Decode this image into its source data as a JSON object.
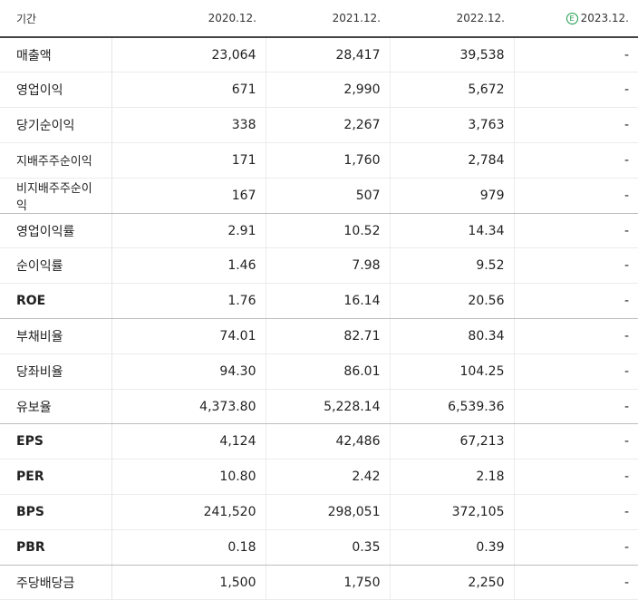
{
  "header": {
    "label": "기간",
    "periods": [
      "2020.12.",
      "2021.12.",
      "2022.12.",
      "2023.12."
    ],
    "estimate_marker": "E"
  },
  "rows": [
    {
      "label": "매출액",
      "values": [
        "23,064",
        "28,417",
        "39,538",
        "-"
      ]
    },
    {
      "label": "영업이익",
      "values": [
        "671",
        "2,990",
        "5,672",
        "-"
      ]
    },
    {
      "label": "당기순이익",
      "values": [
        "338",
        "2,267",
        "3,763",
        "-"
      ]
    },
    {
      "label": "지배주주순이익",
      "values": [
        "171",
        "1,760",
        "2,784",
        "-"
      ]
    },
    {
      "label": "비지배주주순이익",
      "values": [
        "167",
        "507",
        "979",
        "-"
      ]
    },
    {
      "label": "영업이익률",
      "values": [
        "2.91",
        "10.52",
        "14.34",
        "-"
      ]
    },
    {
      "label": "순이익률",
      "values": [
        "1.46",
        "7.98",
        "9.52",
        "-"
      ]
    },
    {
      "label": "ROE",
      "values": [
        "1.76",
        "16.14",
        "20.56",
        "-"
      ]
    },
    {
      "label": "부채비율",
      "values": [
        "74.01",
        "82.71",
        "80.34",
        "-"
      ]
    },
    {
      "label": "당좌비율",
      "values": [
        "94.30",
        "86.01",
        "104.25",
        "-"
      ]
    },
    {
      "label": "유보율",
      "values": [
        "4,373.80",
        "5,228.14",
        "6,539.36",
        "-"
      ]
    },
    {
      "label": "EPS",
      "values": [
        "4,124",
        "42,486",
        "67,213",
        "-"
      ]
    },
    {
      "label": "PER",
      "values": [
        "10.80",
        "2.42",
        "2.18",
        "-"
      ]
    },
    {
      "label": "BPS",
      "values": [
        "241,520",
        "298,051",
        "372,105",
        "-"
      ]
    },
    {
      "label": "PBR",
      "values": [
        "0.18",
        "0.35",
        "0.39",
        "-"
      ]
    },
    {
      "label": "주당배당금",
      "values": [
        "1,500",
        "1,750",
        "2,250",
        "-"
      ]
    }
  ],
  "colors": {
    "estimate_badge": "#1a9a4a",
    "header_rule": "#444444",
    "group_rule": "#bdbdbd",
    "row_rule": "#ebebeb"
  }
}
